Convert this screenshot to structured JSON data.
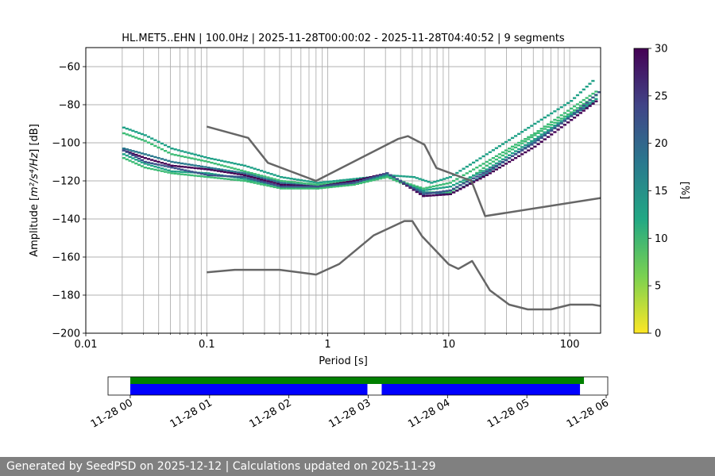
{
  "chart_data": {
    "type": "heatmap",
    "title": "HL.MET5..EHN | 100.0Hz | 2025-11-28T00:00:02 - 2025-11-28T04:40:52 | 9 segments",
    "xlabel": "Period [s]",
    "ylabel_prefix": "Amplitude [",
    "ylabel_unit": "m²/s⁴/Hz",
    "ylabel_suffix": "] [dB]",
    "x_scale": "log",
    "xlim": [
      0.01,
      180
    ],
    "ylim": [
      -200,
      -50
    ],
    "grid": true,
    "x_ticks": [
      {
        "value": 0.01,
        "label": "0.01"
      },
      {
        "value": 0.1,
        "label": "0.1"
      },
      {
        "value": 1,
        "label": "1"
      },
      {
        "value": 10,
        "label": "10"
      },
      {
        "value": 100,
        "label": "100"
      }
    ],
    "y_ticks": [
      {
        "value": -60,
        "label": "−60"
      },
      {
        "value": -80,
        "label": "−80"
      },
      {
        "value": -100,
        "label": "−100"
      },
      {
        "value": -120,
        "label": "−120"
      },
      {
        "value": -140,
        "label": "−140"
      },
      {
        "value": -160,
        "label": "−160"
      },
      {
        "value": -180,
        "label": "−180"
      },
      {
        "value": -200,
        "label": "−200"
      }
    ],
    "colorbar": {
      "label": "[%]",
      "range": [
        0,
        30
      ],
      "ticks": [
        "0",
        "5",
        "10",
        "15",
        "20",
        "25",
        "30"
      ],
      "colormap": "viridis_r"
    },
    "noise_models": [
      {
        "name": "high",
        "color": "#666666",
        "points": [
          [
            0.1,
            -91.5
          ],
          [
            0.22,
            -97.4
          ],
          [
            0.32,
            -110.5
          ],
          [
            0.8,
            -120
          ],
          [
            3.8,
            -98
          ],
          [
            4.6,
            -96.5
          ],
          [
            6.3,
            -101
          ],
          [
            7.9,
            -113.2
          ],
          [
            15.4,
            -120
          ],
          [
            20,
            -138.5
          ],
          [
            180,
            -129
          ]
        ]
      },
      {
        "name": "low",
        "color": "#666666",
        "points": [
          [
            0.1,
            -168
          ],
          [
            0.17,
            -166.7
          ],
          [
            0.4,
            -166.7
          ],
          [
            0.8,
            -169.2
          ],
          [
            1.24,
            -163.7
          ],
          [
            2.4,
            -148.6
          ],
          [
            4.3,
            -141.1
          ],
          [
            5.0,
            -141.1
          ],
          [
            6.0,
            -149
          ],
          [
            10,
            -163.8
          ],
          [
            12,
            -166.2
          ],
          [
            15.6,
            -162.1
          ],
          [
            21.9,
            -177.5
          ],
          [
            31.6,
            -185
          ],
          [
            45,
            -187.5
          ],
          [
            70,
            -187.5
          ],
          [
            101,
            -185
          ],
          [
            154,
            -185
          ],
          [
            180,
            -185.7
          ]
        ]
      }
    ],
    "psd_traces": [
      {
        "color": "#1fa187",
        "points": [
          [
            0.02,
            -92
          ],
          [
            0.03,
            -96
          ],
          [
            0.05,
            -103
          ],
          [
            0.1,
            -108
          ],
          [
            0.2,
            -112
          ],
          [
            0.4,
            -118
          ],
          [
            0.8,
            -121
          ],
          [
            1.6,
            -119
          ],
          [
            3,
            -117
          ],
          [
            5,
            -118
          ],
          [
            7,
            -121
          ],
          [
            10,
            -118
          ],
          [
            20,
            -106
          ],
          [
            50,
            -90
          ],
          [
            100,
            -78
          ],
          [
            160,
            -66
          ]
        ]
      },
      {
        "color": "#3cbc75",
        "points": [
          [
            0.02,
            -95
          ],
          [
            0.03,
            -99
          ],
          [
            0.05,
            -106
          ],
          [
            0.1,
            -110
          ],
          [
            0.2,
            -115
          ],
          [
            0.4,
            -120
          ],
          [
            0.8,
            -122
          ],
          [
            1.6,
            -120
          ],
          [
            3,
            -118
          ],
          [
            6,
            -126
          ],
          [
            10,
            -126
          ],
          [
            20,
            -112
          ],
          [
            50,
            -96
          ],
          [
            100,
            -84
          ],
          [
            170,
            -74
          ]
        ]
      },
      {
        "color": "#2a788e",
        "points": [
          [
            0.02,
            -103
          ],
          [
            0.03,
            -106
          ],
          [
            0.05,
            -110
          ],
          [
            0.1,
            -113
          ],
          [
            0.2,
            -116
          ],
          [
            0.4,
            -121
          ],
          [
            0.8,
            -123
          ],
          [
            1.6,
            -121
          ],
          [
            3,
            -117
          ],
          [
            6,
            -126
          ],
          [
            10,
            -127
          ],
          [
            20,
            -116
          ],
          [
            50,
            -99
          ],
          [
            100,
            -86
          ],
          [
            160,
            -78
          ]
        ]
      },
      {
        "color": "#440154",
        "points": [
          [
            0.02,
            -104
          ],
          [
            0.03,
            -108
          ],
          [
            0.05,
            -112
          ],
          [
            0.1,
            -114
          ],
          [
            0.2,
            -117
          ],
          [
            0.4,
            -122
          ],
          [
            0.8,
            -123
          ],
          [
            1.6,
            -120
          ],
          [
            3,
            -116
          ],
          [
            6,
            -128
          ],
          [
            10,
            -127
          ],
          [
            20,
            -117
          ],
          [
            50,
            -102
          ],
          [
            100,
            -88
          ],
          [
            170,
            -77
          ]
        ]
      },
      {
        "color": "#1fa187",
        "points": [
          [
            0.02,
            -106
          ],
          [
            0.03,
            -111
          ],
          [
            0.05,
            -115
          ],
          [
            0.1,
            -116
          ],
          [
            0.2,
            -119
          ],
          [
            0.4,
            -123
          ],
          [
            0.8,
            -124
          ],
          [
            1.6,
            -121
          ],
          [
            3,
            -117
          ],
          [
            6,
            -125
          ],
          [
            10,
            -123
          ],
          [
            20,
            -114
          ],
          [
            50,
            -98
          ],
          [
            100,
            -85
          ],
          [
            170,
            -76
          ]
        ]
      },
      {
        "color": "#3cbc75",
        "points": [
          [
            0.02,
            -108
          ],
          [
            0.03,
            -113
          ],
          [
            0.05,
            -116
          ],
          [
            0.1,
            -118
          ],
          [
            0.2,
            -120
          ],
          [
            0.4,
            -124
          ],
          [
            0.8,
            -124
          ],
          [
            1.6,
            -122
          ],
          [
            3,
            -118
          ],
          [
            6,
            -124
          ],
          [
            10,
            -121
          ],
          [
            20,
            -110
          ],
          [
            50,
            -95
          ],
          [
            100,
            -82
          ],
          [
            170,
            -72
          ]
        ]
      },
      {
        "color": "#3b528b",
        "points": [
          [
            0.02,
            -104
          ],
          [
            0.03,
            -110
          ],
          [
            0.05,
            -113
          ],
          [
            0.1,
            -117
          ],
          [
            0.2,
            -118
          ],
          [
            0.4,
            -123
          ],
          [
            0.8,
            -123
          ],
          [
            1.6,
            -121
          ],
          [
            3,
            -116
          ],
          [
            6,
            -127
          ],
          [
            10,
            -125
          ],
          [
            20,
            -115
          ],
          [
            50,
            -100
          ],
          [
            100,
            -86
          ],
          [
            180,
            -72
          ]
        ]
      }
    ],
    "timeline": {
      "ticks": [
        "11-28 00",
        "11-28 01",
        "11-28 02",
        "11-28 03",
        "11-28 04",
        "11-28 05",
        "11-28 06"
      ],
      "range_hours": [
        -0.28,
        6.02
      ],
      "availability": {
        "color": "#008000",
        "start_h": 0.0,
        "end_h": 5.72
      },
      "segments": {
        "color": "#0000ff",
        "spans": [
          [
            0.0,
            2.99
          ],
          [
            3.17,
            5.67
          ]
        ]
      }
    }
  },
  "footer_text": "Generated by SeedPSD on 2025-12-12 | Calculations updated on 2025-11-29"
}
